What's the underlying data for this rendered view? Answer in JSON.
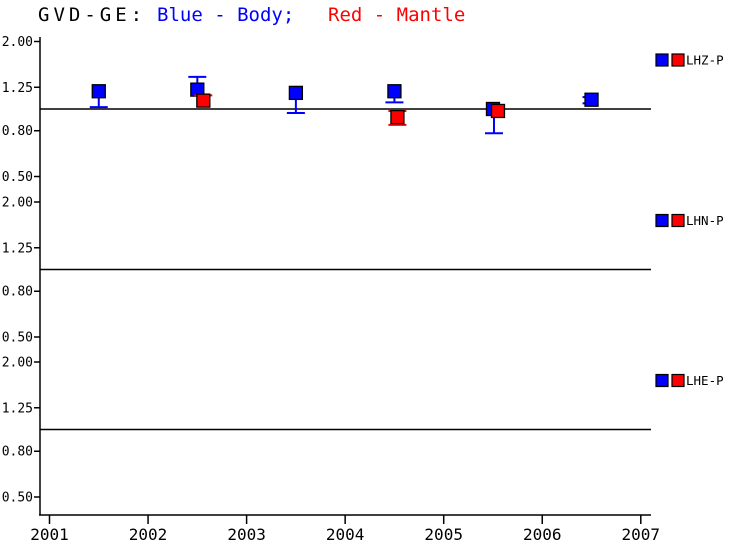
{
  "title": {
    "station": "GVD-GE:",
    "body_label": "Blue - Body;",
    "mantle_label": "Red - Mantle"
  },
  "colors": {
    "body": "#0000ff",
    "mantle": "#ff0000",
    "axis": "#000000",
    "background": "#ffffff"
  },
  "chart_data": {
    "type": "scatter",
    "title": "GVD-GE: Blue - Body; Red - Mantle",
    "x": {
      "ticks": [
        2001,
        2002,
        2003,
        2004,
        2005,
        2006,
        2007
      ],
      "range": [
        2001,
        2007.1
      ]
    },
    "y": {
      "scale": "log",
      "tick_values": [
        2.0,
        1.25,
        0.8,
        0.5
      ],
      "tick_labels": [
        "2.00",
        "1.25",
        "0.80",
        "0.50"
      ],
      "range": [
        0.5,
        2.0
      ],
      "refline": 1.0
    },
    "legend_position": "right-of-panel",
    "grid": false,
    "panels": [
      {
        "label": "LHZ-P",
        "series": [
          {
            "name": "Body",
            "color": "#0000ff",
            "points": [
              {
                "x": 2001.5,
                "y": 1.2,
                "err_lo": 1.02
              },
              {
                "x": 2002.5,
                "y": 1.22,
                "err_hi": 1.39
              },
              {
                "x": 2003.5,
                "y": 1.18,
                "err_lo": 0.96
              },
              {
                "x": 2004.5,
                "y": 1.2,
                "err_lo": 1.07
              },
              {
                "x": 2005.5,
                "y": 1.0,
                "err_lo": 0.78,
                "err_dx": 1
              },
              {
                "x": 2006.5,
                "y": 1.1,
                "err_lo": 1.06,
                "err_hi": 1.13,
                "err_dx": -3,
                "cap_w": 12
              }
            ]
          },
          {
            "name": "Mantle",
            "color": "#ff0000",
            "points": [
              {
                "x": 2002.5,
                "y": 1.09,
                "err_hi": 1.15,
                "dx": 6
              },
              {
                "x": 2004.5,
                "y": 0.92,
                "err_lo": 0.85,
                "err_hi": 0.98,
                "dx": 3
              },
              {
                "x": 2005.5,
                "y": 0.98,
                "dx": 5
              }
            ]
          }
        ]
      },
      {
        "label": "LHN-P",
        "series": []
      },
      {
        "label": "LHE-P",
        "series": []
      }
    ]
  }
}
